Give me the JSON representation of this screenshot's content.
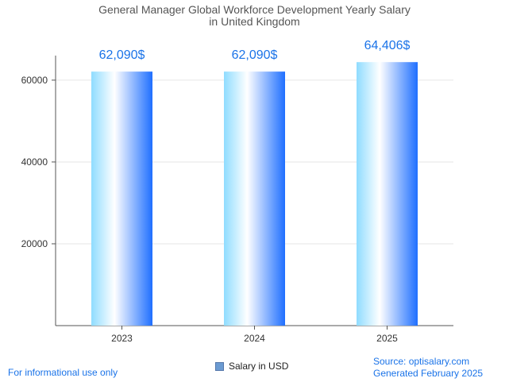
{
  "chart_data": {
    "type": "bar",
    "title_lines": [
      "General Manager Global Workforce Development Yearly Salary",
      "in United Kingdom"
    ],
    "categories": [
      "2023",
      "2024",
      "2025"
    ],
    "series": [
      {
        "name": "Salary in USD",
        "values": [
          62090,
          62090,
          64406
        ]
      }
    ],
    "data_labels": [
      "62,090$",
      "62,090$",
      "64,406$"
    ],
    "y_ticks": [
      20000,
      40000,
      60000
    ],
    "ylim": [
      0,
      66000
    ],
    "grid": true,
    "legend_position": "bottom"
  },
  "footer": {
    "disclaimer": "For informational use only",
    "source": "Source: optisalary.com",
    "generated": "Generated February 2025"
  },
  "colors": {
    "bar_gradient": [
      "#8fdcff",
      "#ffffff",
      "#1f6fff"
    ],
    "data_label": "#1a73e8",
    "footer_text": "#1a73e8",
    "axis": "#555555",
    "grid": "#e6e6e6"
  }
}
